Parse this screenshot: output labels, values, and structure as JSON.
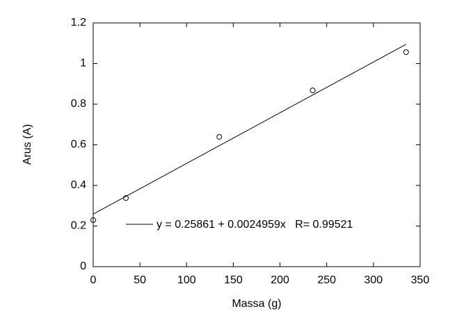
{
  "chart_data": {
    "type": "scatter",
    "x_label": "Massa (g)",
    "y_label": "Arus (A)",
    "xlim": [
      0,
      350
    ],
    "xticks": [
      0,
      50,
      100,
      150,
      200,
      250,
      300,
      350
    ],
    "ylim": [
      0,
      1.2
    ],
    "yticks": [
      0,
      0.2,
      0.4,
      0.6,
      0.8,
      1,
      1.2
    ],
    "series": [
      {
        "kind": "points",
        "color": "#000000",
        "x": [
          0,
          35,
          135,
          235,
          335
        ],
        "values": [
          0.229,
          0.338,
          0.639,
          0.868,
          1.056
        ]
      },
      {
        "kind": "line",
        "name": "y = 0.25861 + 0.0024959x   R= 0.99521",
        "color": "#000000",
        "x": [
          0,
          335
        ],
        "values": [
          0.25861,
          1.09474
        ]
      }
    ]
  }
}
